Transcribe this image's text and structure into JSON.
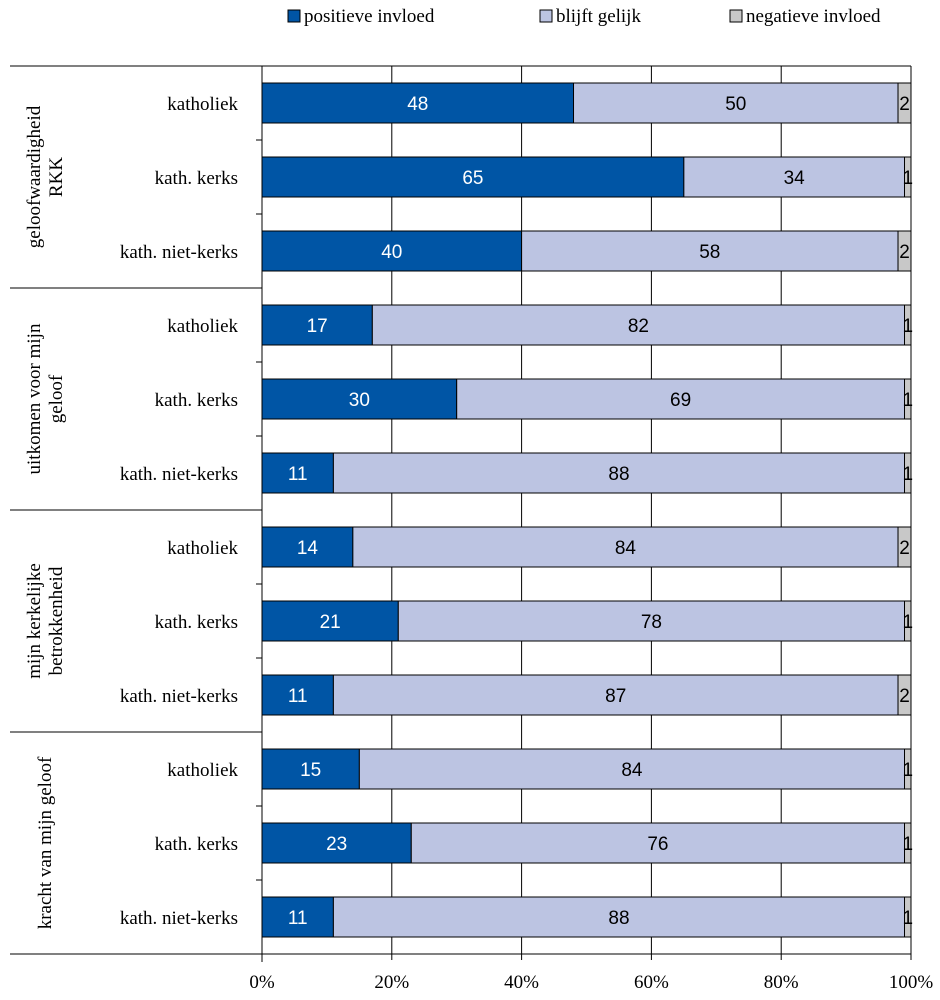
{
  "chart_data": {
    "type": "bar",
    "orientation": "horizontal",
    "stacked": "percent",
    "legend": {
      "placement": "top",
      "items": [
        {
          "name": "positieve invloed",
          "color": "#0055a5"
        },
        {
          "name": "blijft gelijk",
          "color": "#bcc4e2"
        },
        {
          "name": "negatieve invloed",
          "color": "#c8c8c8"
        }
      ]
    },
    "x_ticks": [
      "0%",
      "20%",
      "40%",
      "60%",
      "80%",
      "100%"
    ],
    "xlim": [
      0,
      100
    ],
    "grid": true,
    "groups": [
      {
        "label": "geloofwaardigheid RKK",
        "label_lines": [
          "geloofwaardigheid",
          "RKK"
        ],
        "rows": [
          {
            "category": "katholiek",
            "values": [
              48,
              50,
              2
            ]
          },
          {
            "category": "kath. kerks",
            "values": [
              65,
              34,
              1
            ]
          },
          {
            "category": "kath. niet-kerks",
            "values": [
              40,
              58,
              2
            ]
          }
        ]
      },
      {
        "label": "uitkomen voor mijn geloof",
        "label_lines": [
          "uitkomen voor mijn",
          "geloof"
        ],
        "rows": [
          {
            "category": "katholiek",
            "values": [
              17,
              82,
              1
            ]
          },
          {
            "category": "kath. kerks",
            "values": [
              30,
              69,
              1
            ]
          },
          {
            "category": "kath. niet-kerks",
            "values": [
              11,
              88,
              1
            ]
          }
        ]
      },
      {
        "label": "mijn kerkelijke betrokkenheid",
        "label_lines": [
          "mijn kerkelijke",
          "betrokkenheid"
        ],
        "rows": [
          {
            "category": "katholiek",
            "values": [
              14,
              84,
              2
            ]
          },
          {
            "category": "kath. kerks",
            "values": [
              21,
              78,
              1
            ]
          },
          {
            "category": "kath. niet-kerks",
            "values": [
              11,
              87,
              2
            ]
          }
        ]
      },
      {
        "label": "kracht van mijn geloof",
        "label_lines": [
          "kracht van mijn geloof"
        ],
        "rows": [
          {
            "category": "katholiek",
            "values": [
              15,
              84,
              1
            ]
          },
          {
            "category": "kath. kerks",
            "values": [
              23,
              76,
              1
            ]
          },
          {
            "category": "kath. niet-kerks",
            "values": [
              11,
              88,
              1
            ]
          }
        ]
      }
    ]
  }
}
